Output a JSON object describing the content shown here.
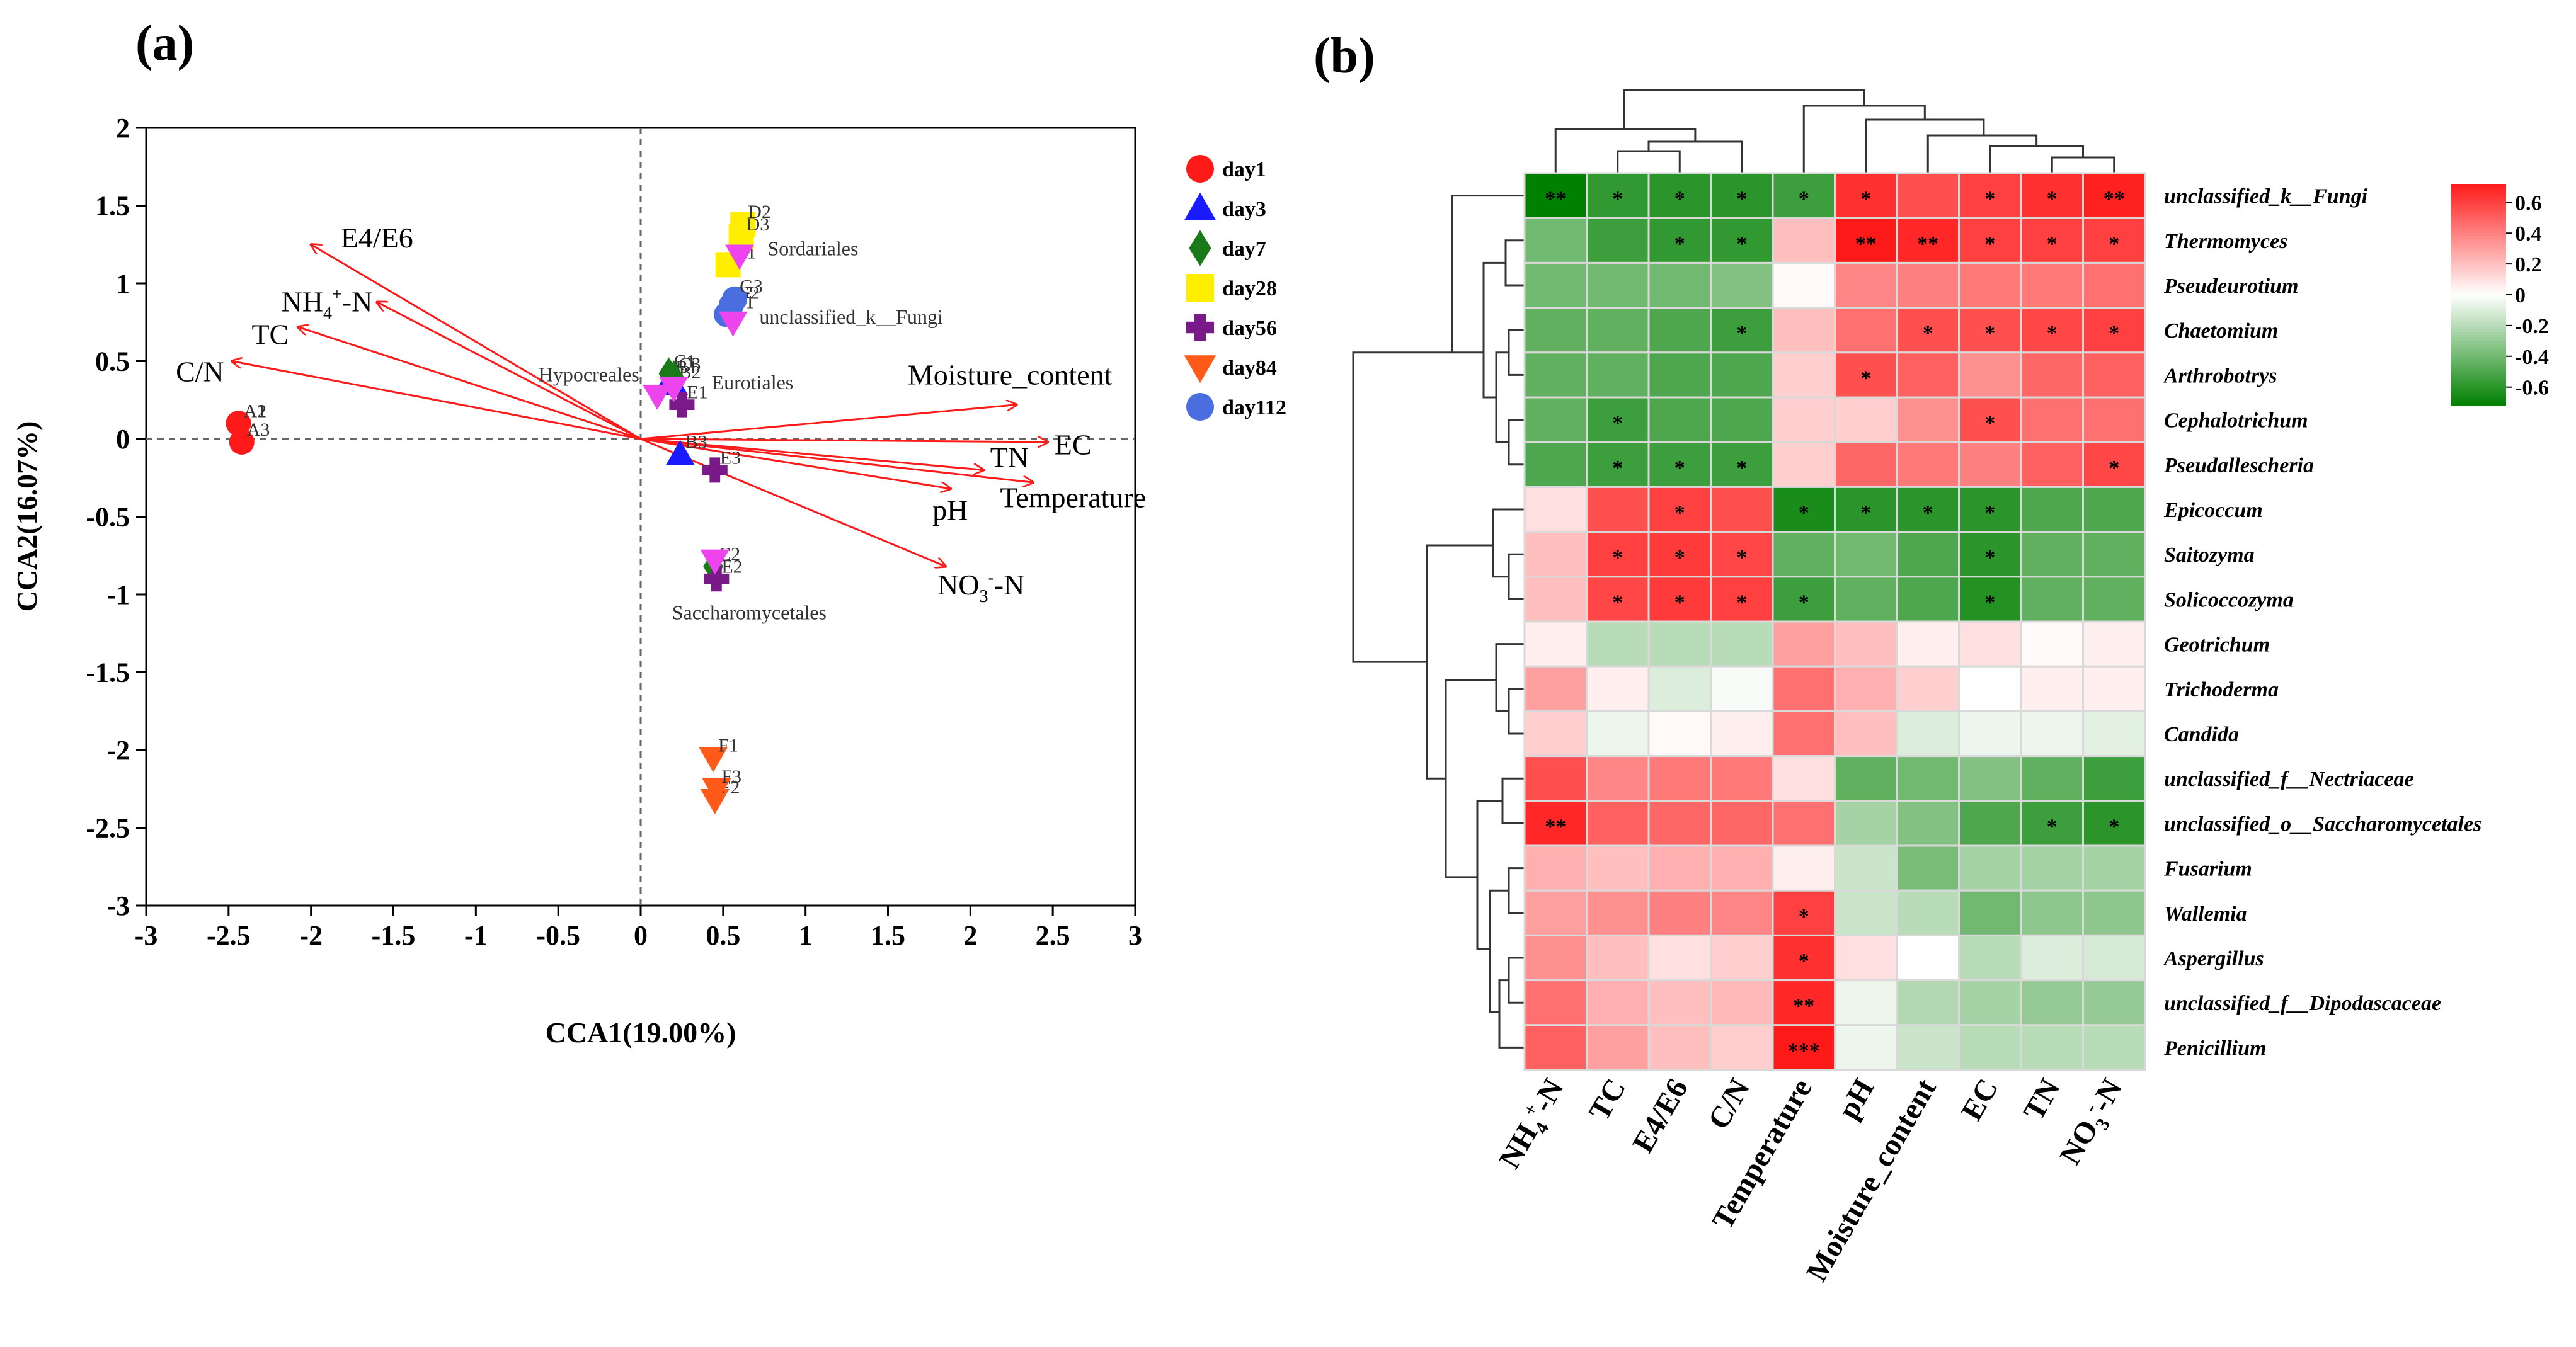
{
  "chart_data": [
    {
      "type": "scatter",
      "panel_label": "(a)",
      "xlabel": "CCA1(19.00%)",
      "ylabel": "CCA2(16.07%)",
      "xlim": [
        -3,
        3
      ],
      "ylim": [
        -3,
        2
      ],
      "x_ticks": [
        "-3",
        "-2.5",
        "-2",
        "-1.5",
        "-1",
        "-0.5",
        "0",
        "0.5",
        "1",
        "1.5",
        "2",
        "2.5",
        "3"
      ],
      "y_ticks": [
        "2",
        "1.5",
        "1",
        "0.5",
        "0",
        "-0.5",
        "-1",
        "-1.5",
        "-2",
        "-2.5",
        "-3"
      ],
      "legend_position": "right",
      "series": [
        {
          "name": "day1",
          "color": "#ff1a1a",
          "marker": "circle",
          "points": [
            {
              "label": "A1",
              "x": -2.44,
              "y": 0.1
            },
            {
              "label": "A2",
              "x": -2.44,
              "y": 0.1
            },
            {
              "label": "A3",
              "x": -2.42,
              "y": -0.02
            }
          ]
        },
        {
          "name": "day3",
          "color": "#1a1aff",
          "marker": "triangle-up",
          "points": [
            {
              "label": "B1",
              "x": 0.18,
              "y": 0.38
            },
            {
              "label": "B2",
              "x": 0.2,
              "y": 0.35
            },
            {
              "label": "B3",
              "x": 0.24,
              "y": -0.1
            }
          ]
        },
        {
          "name": "day7",
          "color": "#1a7a1a",
          "marker": "diamond",
          "points": [
            {
              "label": "C1",
              "x": 0.17,
              "y": 0.42
            },
            {
              "label": "C2",
              "x": 0.44,
              "y": -0.82
            },
            {
              "label": "C3",
              "x": 0.2,
              "y": 0.4
            }
          ]
        },
        {
          "name": "day28",
          "color": "#ffee00",
          "marker": "square",
          "points": [
            {
              "label": "D1",
              "x": 0.53,
              "y": 1.12
            },
            {
              "label": "D2",
              "x": 0.62,
              "y": 1.38
            },
            {
              "label": "D3",
              "x": 0.61,
              "y": 1.3
            }
          ]
        },
        {
          "name": "day56",
          "color": "#7a1a8a",
          "marker": "cross",
          "points": [
            {
              "label": "E1",
              "x": 0.25,
              "y": 0.22
            },
            {
              "label": "E2",
              "x": 0.46,
              "y": -0.9
            },
            {
              "label": "E3",
              "x": 0.45,
              "y": -0.2
            }
          ]
        },
        {
          "name": "day84",
          "color": "#ff5a1a",
          "marker": "triangle-down",
          "points": [
            {
              "label": "F1",
              "x": 0.44,
              "y": -2.05
            },
            {
              "label": "F2",
              "x": 0.45,
              "y": -2.32
            },
            {
              "label": "F3",
              "x": 0.46,
              "y": -2.25
            }
          ]
        },
        {
          "name": "day112",
          "color": "#4a6ee0",
          "marker": "circle",
          "points": [
            {
              "label": "G1",
              "x": 0.52,
              "y": 0.8
            },
            {
              "label": "G2",
              "x": 0.55,
              "y": 0.86
            },
            {
              "label": "G3",
              "x": 0.57,
              "y": 0.9
            }
          ]
        }
      ],
      "extra_points": [
        {
          "label": "",
          "x": 0.1,
          "y": 0.28,
          "color": "#ee44ee",
          "marker": "triangle-down"
        },
        {
          "label": "",
          "x": 0.2,
          "y": 0.33,
          "color": "#ee44ee",
          "marker": "triangle-down"
        },
        {
          "label": "",
          "x": 0.6,
          "y": 1.18,
          "color": "#ee44ee",
          "marker": "triangle-down"
        },
        {
          "label": "",
          "x": 0.56,
          "y": 0.75,
          "color": "#ee44ee",
          "marker": "triangle-down"
        },
        {
          "label": "",
          "x": 0.45,
          "y": -0.78,
          "color": "#ee44ee",
          "marker": "triangle-down"
        }
      ],
      "taxa_labels": [
        {
          "text": "Sordariales",
          "x": 0.77,
          "y": 1.18
        },
        {
          "text": "unclassified_k__Fungi",
          "x": 0.72,
          "y": 0.74
        },
        {
          "text": "Hypocreales",
          "x": -0.62,
          "y": 0.37
        },
        {
          "text": "Eurotiales",
          "x": 0.43,
          "y": 0.32
        },
        {
          "text": "Saccharomycetales",
          "x": 0.19,
          "y": -1.16
        }
      ],
      "arrows": [
        {
          "label": "E4/E6",
          "x": -2.0,
          "y": 1.25
        },
        {
          "label": "NH4+-N",
          "x": -1.6,
          "y": 0.88
        },
        {
          "label": "TC",
          "x": -2.08,
          "y": 0.72
        },
        {
          "label": "C/N",
          "x": -2.48,
          "y": 0.5
        },
        {
          "label": "Moisture_content",
          "x": 2.28,
          "y": 0.22
        },
        {
          "label": "EC",
          "x": 2.47,
          "y": -0.02
        },
        {
          "label": "TN",
          "x": 2.08,
          "y": -0.2
        },
        {
          "label": "Temperature",
          "x": 2.38,
          "y": -0.28
        },
        {
          "label": "pH",
          "x": 1.88,
          "y": -0.32
        },
        {
          "label": "NO3--N",
          "x": 1.85,
          "y": -0.82
        }
      ],
      "arrow_label_positions": [
        {
          "x": -1.82,
          "y": 1.23
        },
        {
          "x": -2.18,
          "y": 0.82
        },
        {
          "x": -2.36,
          "y": 0.61
        },
        {
          "x": -2.82,
          "y": 0.37
        },
        {
          "x": 1.62,
          "y": 0.35
        },
        {
          "x": 2.51,
          "y": -0.1
        },
        {
          "x": 2.12,
          "y": -0.18
        },
        {
          "x": 2.18,
          "y": -0.44
        },
        {
          "x": 1.77,
          "y": -0.52
        },
        {
          "x": 1.8,
          "y": -1.0
        }
      ]
    },
    {
      "type": "heatmap",
      "panel_label": "(b)",
      "rows": [
        "unclassified_k__Fungi",
        "Thermomyces",
        "Pseudeurotium",
        "Chaetomium",
        "Arthrobotrys",
        "Cephalotrichum",
        "Pseudallescheria",
        "Epicoccum",
        "Saitozyma",
        "Solicoccozyma",
        "Geotrichum",
        "Trichoderma",
        "Candida",
        "unclassified_f__Nectriaceae",
        "unclassified_o__Saccharomycetales",
        "Fusarium",
        "Wallemia",
        "Aspergillus",
        "unclassified_f__Dipodascaceae",
        "Penicillium"
      ],
      "columns": [
        "NH4+-N",
        "TC",
        "E4/E6",
        "C/N",
        "Temperature",
        "pH",
        "Moisture_content",
        "EC",
        "TN",
        "NO3--N"
      ],
      "values": [
        [
          -0.72,
          -0.58,
          -0.6,
          -0.6,
          -0.55,
          0.65,
          0.55,
          0.6,
          0.65,
          0.7
        ],
        [
          -0.4,
          -0.55,
          -0.58,
          -0.58,
          0.2,
          0.72,
          0.68,
          0.6,
          0.6,
          0.6
        ],
        [
          -0.4,
          -0.4,
          -0.4,
          -0.35,
          0.02,
          0.38,
          0.4,
          0.42,
          0.42,
          0.45
        ],
        [
          -0.45,
          -0.45,
          -0.5,
          -0.55,
          0.2,
          0.45,
          0.55,
          0.55,
          0.58,
          0.6
        ],
        [
          -0.45,
          -0.45,
          -0.5,
          -0.5,
          0.15,
          0.55,
          0.5,
          0.35,
          0.48,
          0.5
        ],
        [
          -0.45,
          -0.55,
          -0.5,
          -0.5,
          0.15,
          0.15,
          0.35,
          0.55,
          0.45,
          0.45
        ],
        [
          -0.5,
          -0.55,
          -0.55,
          -0.55,
          0.15,
          0.48,
          0.42,
          0.4,
          0.5,
          0.58
        ],
        [
          0.1,
          0.55,
          0.6,
          0.55,
          -0.65,
          -0.6,
          -0.6,
          -0.6,
          -0.5,
          -0.5
        ],
        [
          0.2,
          0.6,
          0.62,
          0.58,
          -0.45,
          -0.4,
          -0.5,
          -0.6,
          -0.45,
          -0.45
        ],
        [
          0.2,
          0.58,
          0.62,
          0.6,
          -0.55,
          -0.45,
          -0.5,
          -0.62,
          -0.45,
          -0.45
        ],
        [
          0.05,
          -0.2,
          -0.2,
          -0.2,
          0.3,
          0.2,
          0.05,
          0.1,
          0.02,
          0.05
        ],
        [
          0.3,
          0.05,
          -0.1,
          -0.02,
          0.45,
          0.25,
          0.15,
          0.0,
          0.05,
          0.05
        ],
        [
          0.15,
          -0.05,
          0.02,
          0.05,
          0.45,
          0.2,
          -0.1,
          -0.05,
          -0.05,
          -0.08
        ],
        [
          0.55,
          0.38,
          0.42,
          0.42,
          0.1,
          -0.45,
          -0.4,
          -0.35,
          -0.45,
          -0.55
        ],
        [
          0.68,
          0.5,
          0.48,
          0.48,
          0.45,
          -0.25,
          -0.35,
          -0.5,
          -0.55,
          -0.6
        ],
        [
          0.25,
          0.2,
          0.25,
          0.25,
          0.05,
          -0.15,
          -0.38,
          -0.25,
          -0.25,
          -0.25
        ],
        [
          0.3,
          0.35,
          0.4,
          0.38,
          0.6,
          -0.15,
          -0.2,
          -0.4,
          -0.32,
          -0.32
        ],
        [
          0.35,
          0.2,
          0.1,
          0.15,
          0.65,
          0.1,
          0.0,
          -0.2,
          -0.1,
          -0.12
        ],
        [
          0.45,
          0.25,
          0.2,
          0.22,
          0.68,
          -0.05,
          -0.22,
          -0.25,
          -0.3,
          -0.3
        ],
        [
          0.5,
          0.3,
          0.2,
          0.15,
          0.72,
          -0.05,
          -0.15,
          -0.2,
          -0.2,
          -0.2
        ]
      ],
      "significance": [
        [
          "**",
          "*",
          "*",
          "*",
          "*",
          "*",
          "",
          "*",
          "*",
          "**"
        ],
        [
          "",
          "",
          "*",
          "*",
          "",
          "**",
          "**",
          "*",
          "*",
          "*"
        ],
        [
          "",
          "",
          "",
          "",
          "",
          "",
          "",
          "",
          "",
          ""
        ],
        [
          "",
          "",
          "",
          "*",
          "",
          "",
          "*",
          "*",
          "*",
          "*"
        ],
        [
          "",
          "",
          "",
          "",
          "",
          "*",
          "",
          "",
          "",
          ""
        ],
        [
          "",
          "*",
          "",
          "",
          "",
          "",
          "",
          "*",
          "",
          ""
        ],
        [
          "",
          "*",
          "*",
          "*",
          "",
          "",
          "",
          "",
          "",
          "*"
        ],
        [
          "",
          "",
          "*",
          "",
          "*",
          "*",
          "*",
          "*",
          "",
          ""
        ],
        [
          "",
          "*",
          "*",
          "*",
          "",
          "",
          "",
          "*",
          "",
          ""
        ],
        [
          "",
          "*",
          "*",
          "*",
          "*",
          "",
          "",
          "*",
          "",
          ""
        ],
        [
          "",
          "",
          "",
          "",
          "",
          "",
          "",
          "",
          "",
          ""
        ],
        [
          "",
          "",
          "",
          "",
          "",
          "",
          "",
          "",
          "",
          ""
        ],
        [
          "",
          "",
          "",
          "",
          "",
          "",
          "",
          "",
          "",
          ""
        ],
        [
          "",
          "",
          "",
          "",
          "",
          "",
          "",
          "",
          "",
          ""
        ],
        [
          "**",
          "",
          "",
          "",
          "",
          "",
          "",
          "",
          "*",
          "*"
        ],
        [
          "",
          "",
          "",
          "",
          "",
          "",
          "",
          "",
          "",
          ""
        ],
        [
          "",
          "",
          "",
          "",
          "*",
          "",
          "",
          "",
          "",
          ""
        ],
        [
          "",
          "",
          "",
          "",
          "*",
          "",
          "",
          "",
          "",
          ""
        ],
        [
          "",
          "",
          "",
          "",
          "**",
          "",
          "",
          "",
          "",
          ""
        ],
        [
          "",
          "",
          "",
          "",
          "***",
          "",
          "",
          "",
          "",
          ""
        ]
      ],
      "colorbar": {
        "range": [
          -0.72,
          0.72
        ],
        "ticks": [
          "0.6",
          "0.4",
          "0.2",
          "0",
          "-0.2",
          "-0.4",
          "-0.6"
        ],
        "tick_values": [
          0.6,
          0.4,
          0.2,
          0,
          -0.2,
          -0.4,
          -0.6
        ],
        "colors": {
          "negative": "#008000",
          "zero": "#ffffff",
          "positive": "#ff1a1a"
        }
      },
      "row_dendrogram": "top cluster: rows 1-7 (Fungi ... Pseudallescheria); mid cluster: rows 8-10 (Epicoccum, Saitozyma, Solicoccozyma); bottom cluster: rows 11-20",
      "column_dendrogram": "left cluster: NH4+-N, TC, E4/E6, C/N; right cluster: Temperature, pH, Moisture_content, EC, TN, NO3--N"
    }
  ]
}
